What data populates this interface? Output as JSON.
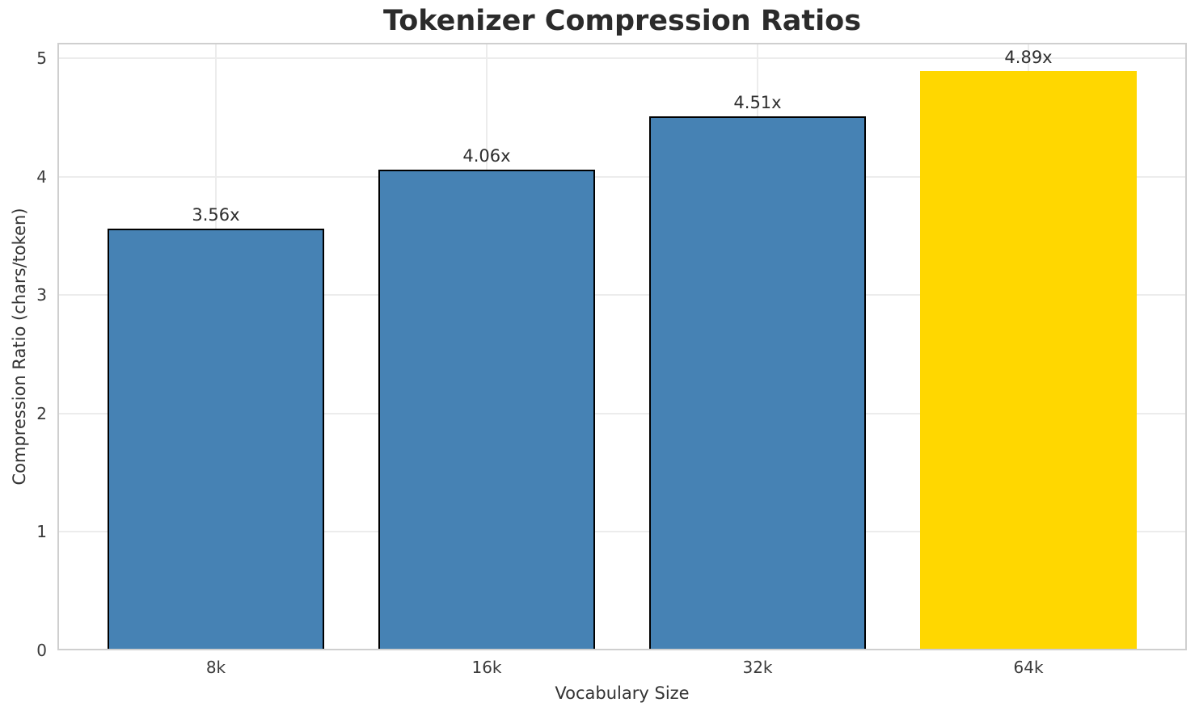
{
  "chart_data": {
    "type": "bar",
    "title": "Tokenizer Compression Ratios",
    "xlabel": "Vocabulary Size",
    "ylabel": "Compression Ratio (chars/token)",
    "categories": [
      "8k",
      "16k",
      "32k",
      "64k"
    ],
    "values": [
      3.56,
      4.06,
      4.51,
      4.89
    ],
    "bar_labels": [
      "3.56x",
      "4.06x",
      "4.51x",
      "4.89x"
    ],
    "bar_colors": [
      "#4682B4",
      "#4682B4",
      "#4682B4",
      "#FFD700"
    ],
    "bar_edge_colors": [
      "#000000",
      "#000000",
      "#000000",
      "none"
    ],
    "bar_width": 0.8,
    "xlim": [
      -0.585,
      3.585
    ],
    "ylim": [
      0,
      5.13
    ],
    "yticks": [
      0,
      1,
      2,
      3,
      4,
      5
    ],
    "grid": "both",
    "legend_position": "none",
    "colors": {
      "background": "#ffffff",
      "grid": "#ececec",
      "spine": "#cfcfcf",
      "title_text": "#2b2b2b",
      "tick_text": "#3a3a3a",
      "label_text": "#333333",
      "bar_blue": "#4682B4",
      "bar_gold": "#FFD700",
      "bar_edge": "#000000"
    }
  }
}
